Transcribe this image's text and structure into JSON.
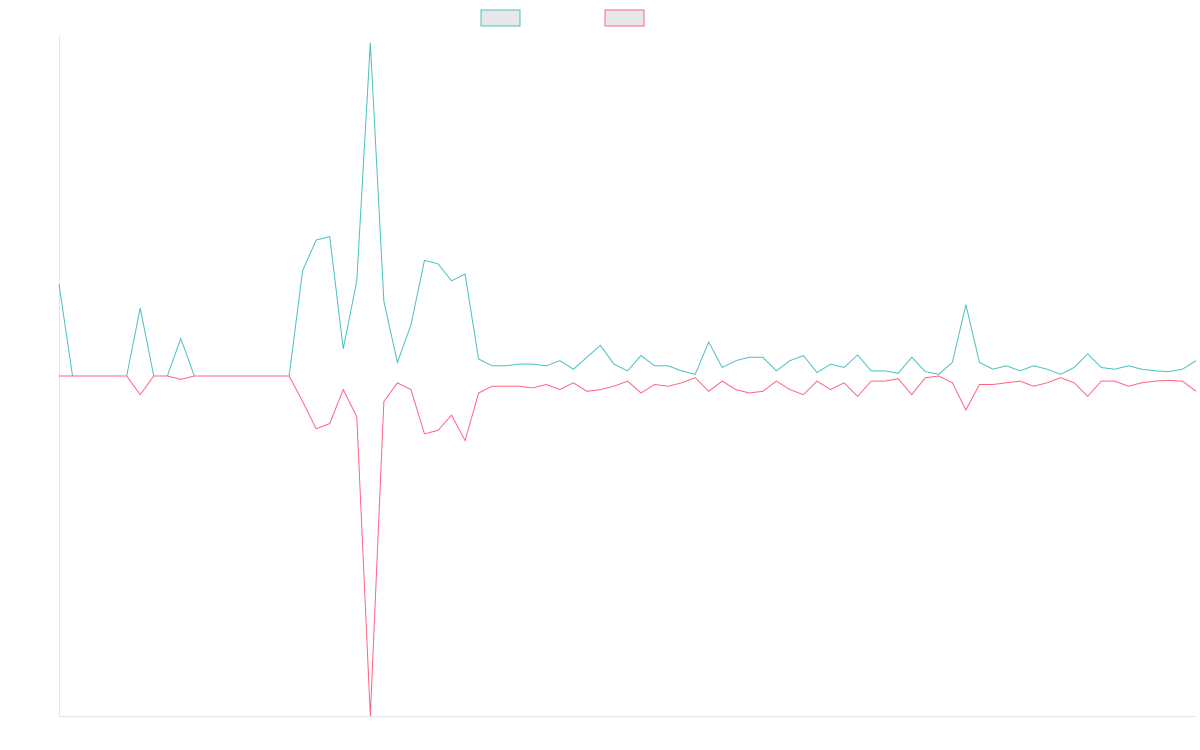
{
  "chart_data": {
    "type": "line",
    "title": "",
    "xlabel": "",
    "ylabel": "",
    "legend_position": "top-center",
    "grid": false,
    "ylim": [
      -100,
      100
    ],
    "x": [
      0,
      1,
      2,
      3,
      4,
      5,
      6,
      7,
      8,
      9,
      10,
      11,
      12,
      13,
      14,
      15,
      16,
      17,
      18,
      19,
      20,
      21,
      22,
      23,
      24,
      25,
      26,
      27,
      28,
      29,
      30,
      31,
      32,
      33,
      34,
      35,
      36,
      37,
      38,
      39,
      40,
      41,
      42,
      43,
      44,
      45,
      46,
      47,
      48,
      49,
      50,
      51,
      52,
      53,
      54,
      55,
      56,
      57,
      58,
      59,
      60,
      61,
      62,
      63,
      64,
      65,
      66,
      67,
      68,
      69,
      70,
      71,
      72,
      73,
      74,
      75,
      76,
      77,
      78,
      79,
      80,
      81,
      82,
      83,
      84
    ],
    "series": [
      {
        "color": "#4bc0c0",
        "values": [
          27,
          0,
          0,
          0,
          0,
          0,
          20,
          0,
          0,
          11,
          0,
          0,
          0,
          0,
          0,
          0,
          0,
          0,
          31,
          40,
          41,
          8,
          28,
          98,
          22,
          4,
          15,
          34,
          33,
          28,
          30,
          5,
          3,
          3,
          3.5,
          3.5,
          3,
          4.5,
          2,
          5.5,
          9,
          3.5,
          1.5,
          6,
          3,
          3,
          1.5,
          0.5,
          10,
          2.5,
          4.5,
          5.5,
          5.5,
          1.5,
          4.5,
          6,
          1,
          3.5,
          2.5,
          6.2,
          1.5,
          1.5,
          0.8,
          5.5,
          1.3,
          0.5,
          4,
          21,
          4,
          2,
          3,
          1.5,
          3,
          2,
          0.5,
          2.5,
          6.5,
          2.5,
          2,
          3,
          2,
          1.5,
          1.3,
          2,
          4.5
        ]
      },
      {
        "color": "#ff6384",
        "values": [
          0,
          0,
          0,
          0,
          0,
          0,
          -5.5,
          0,
          0,
          -1,
          0,
          0,
          0,
          0,
          0,
          0,
          0,
          0,
          -7.5,
          -15.5,
          -14,
          -4,
          -12,
          -100,
          -7.5,
          -2,
          -4,
          -17,
          -16,
          -11.5,
          -19,
          -5,
          -3,
          -3,
          -3,
          -3.5,
          -2.5,
          -4,
          -2,
          -4.5,
          -4,
          -3,
          -1.5,
          -5,
          -2.5,
          -3,
          -2,
          -0.5,
          -4.5,
          -1.5,
          -4,
          -5,
          -4.5,
          -1.5,
          -4,
          -5.5,
          -1.5,
          -4,
          -2,
          -6,
          -1.5,
          -1.5,
          -0.8,
          -5.5,
          -0.5,
          0,
          -2,
          -10,
          -2.5,
          -2.5,
          -2,
          -1.5,
          -3,
          -2,
          -0.5,
          -2,
          -6,
          -1.5,
          -1.5,
          -3,
          -2,
          -1.5,
          -1.3,
          -1.5,
          -4.5
        ]
      }
    ]
  }
}
